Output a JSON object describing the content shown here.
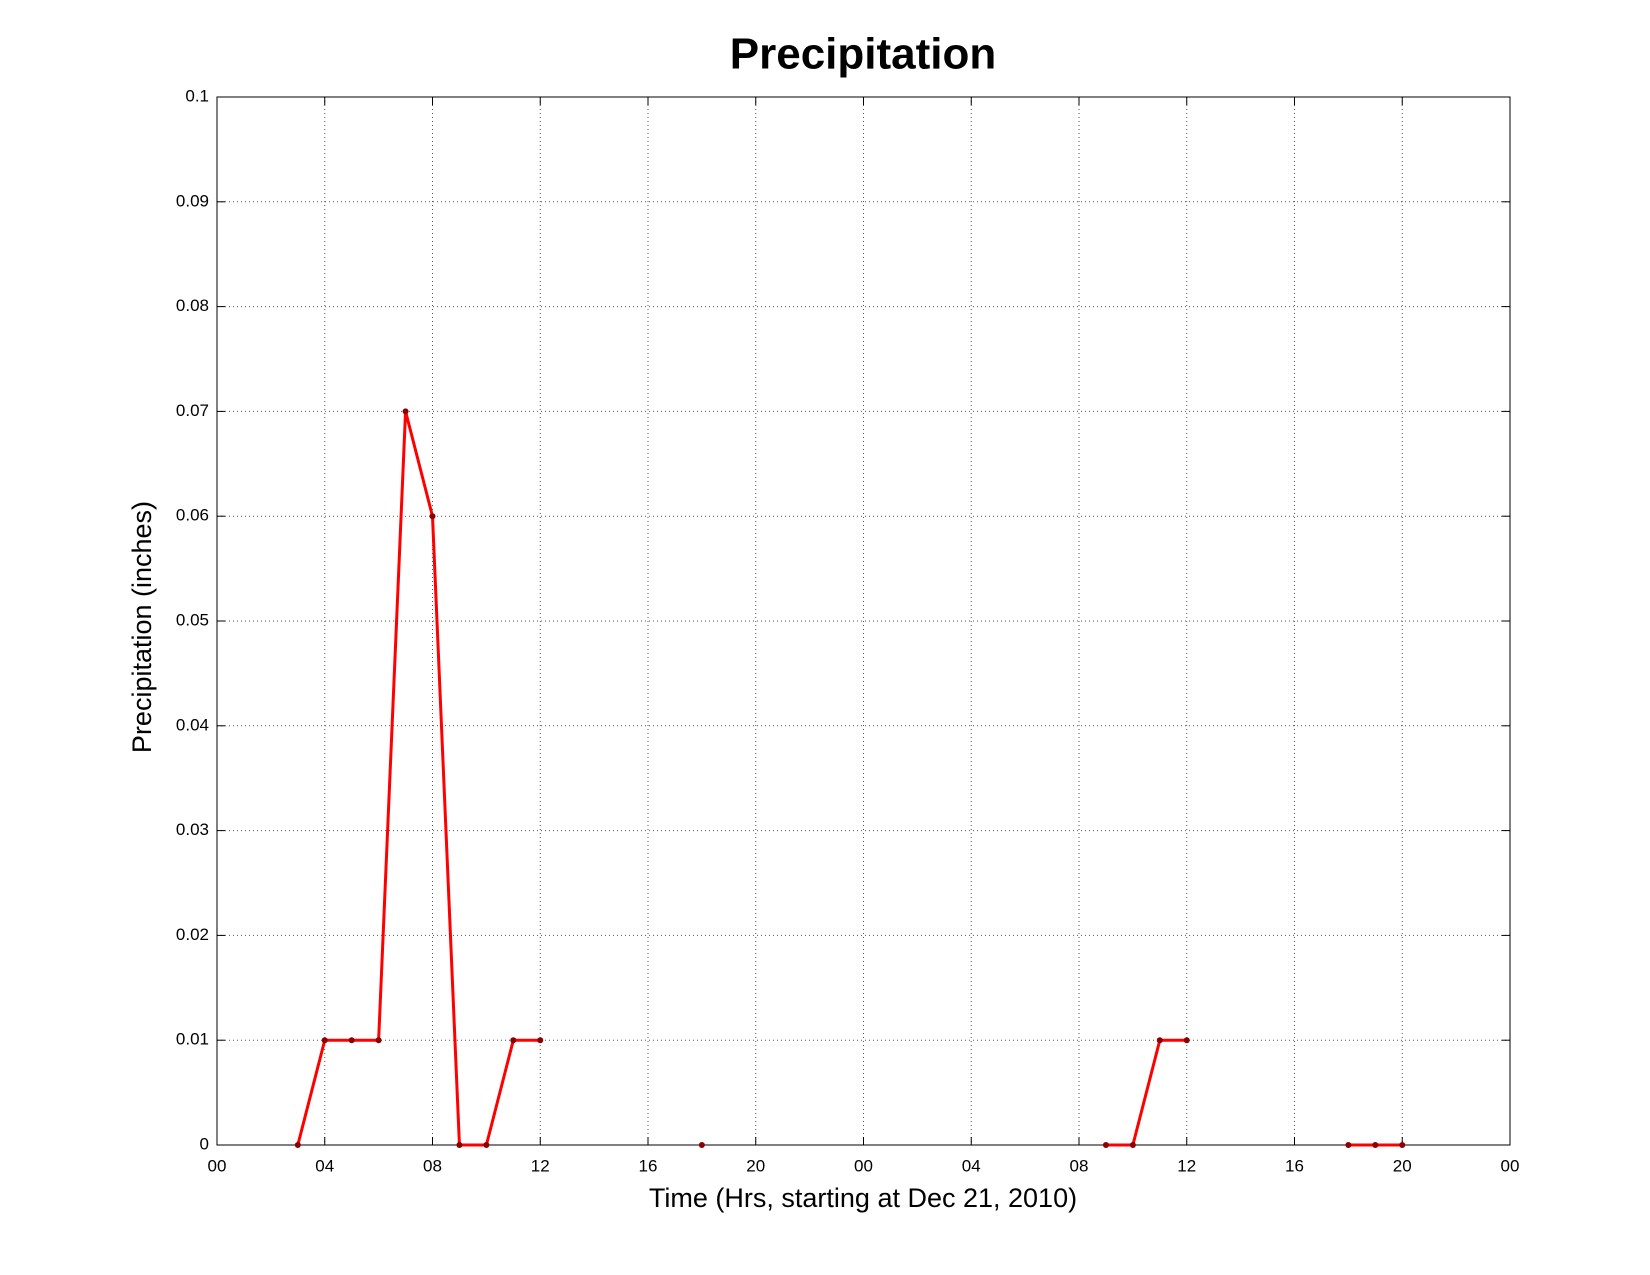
{
  "chart_data": {
    "type": "line",
    "title": "Precipitation",
    "x_label": "Time (Hrs, starting at Dec 21, 2010)",
    "y_label": "Precipitation (inches)",
    "x": [
      3,
      4,
      5,
      6,
      7,
      8,
      9,
      10,
      11,
      12,
      13,
      18,
      19,
      33,
      34,
      35,
      36,
      37,
      42,
      43,
      44
    ],
    "series": [
      {
        "name": "Precipitation",
        "color": "#ff0000",
        "marker_color": "#8b0000",
        "values": [
          0,
          0.01,
          0.01,
          0.01,
          0.07,
          0.06,
          0,
          0,
          0.01,
          0.01,
          null,
          0,
          null,
          0,
          0,
          0.01,
          0.01,
          null,
          0,
          0,
          0
        ]
      }
    ],
    "xlim": [
      0,
      48
    ],
    "xticks": [
      {
        "value": 0,
        "label": "00"
      },
      {
        "value": 4,
        "label": "04"
      },
      {
        "value": 8,
        "label": "08"
      },
      {
        "value": 12,
        "label": "12"
      },
      {
        "value": 16,
        "label": "16"
      },
      {
        "value": 20,
        "label": "20"
      },
      {
        "value": 24,
        "label": "00"
      },
      {
        "value": 28,
        "label": "04"
      },
      {
        "value": 32,
        "label": "08"
      },
      {
        "value": 36,
        "label": "12"
      },
      {
        "value": 40,
        "label": "16"
      },
      {
        "value": 44,
        "label": "20"
      },
      {
        "value": 48,
        "label": "00"
      }
    ],
    "ylim": [
      0,
      0.1
    ],
    "yticks": [
      0,
      0.01,
      0.02,
      0.03,
      0.04,
      0.05,
      0.06,
      0.07,
      0.08,
      0.09,
      0.1
    ],
    "grid": true
  }
}
